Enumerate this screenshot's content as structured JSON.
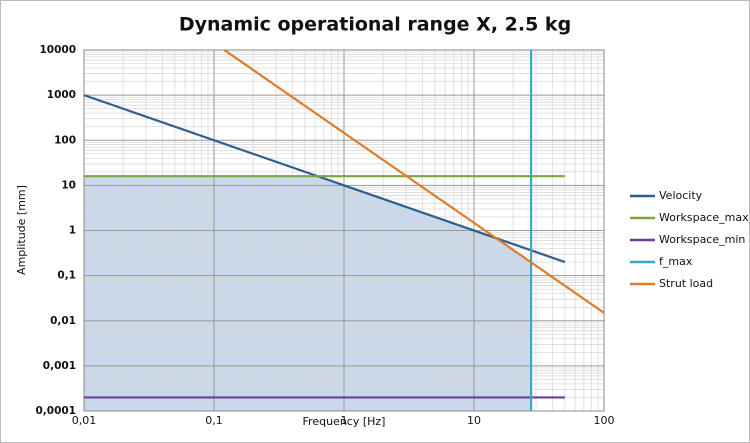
{
  "chart_data": {
    "type": "line",
    "title": "Dynamic operational range X, 2.5 kg",
    "xlabel": "Frequency [Hz]",
    "ylabel": "Amplitude [mm]",
    "xscale": "log",
    "yscale": "log",
    "xlim": [
      0.01,
      100
    ],
    "ylim": [
      0.0001,
      10000
    ],
    "xticks": [
      {
        "value": 0.01,
        "label": "0,01"
      },
      {
        "value": 0.1,
        "label": "0,1"
      },
      1,
      10,
      100
    ],
    "yticks": [
      {
        "value": 0.0001,
        "label": "0,0001"
      },
      {
        "value": 0.001,
        "label": "0,001"
      },
      {
        "value": 0.01,
        "label": "0,01"
      },
      {
        "value": 0.1,
        "label": "0,1"
      },
      1,
      10,
      100,
      1000,
      10000
    ],
    "grid": true,
    "legend": "right",
    "series": [
      {
        "name": "Velocity",
        "color": "#2f5f8f",
        "x": [
          0.01,
          50
        ],
        "values": [
          1000,
          0.2
        ]
      },
      {
        "name": "Workspace_max",
        "color": "#7aa63c",
        "x": [
          0.01,
          50
        ],
        "values": [
          16,
          16
        ]
      },
      {
        "name": "Workspace_min",
        "color": "#6b3f92",
        "x": [
          0.01,
          50
        ],
        "values": [
          0.0002,
          0.0002
        ]
      },
      {
        "name": "f_max",
        "color": "#3ca8c4",
        "x": [
          27.5,
          27.5
        ],
        "values": [
          0.0001,
          10000
        ]
      },
      {
        "name": "Strut load",
        "color": "#e07b27",
        "x": [
          0.12,
          100
        ],
        "values": [
          10000,
          0.015
        ]
      }
    ]
  }
}
